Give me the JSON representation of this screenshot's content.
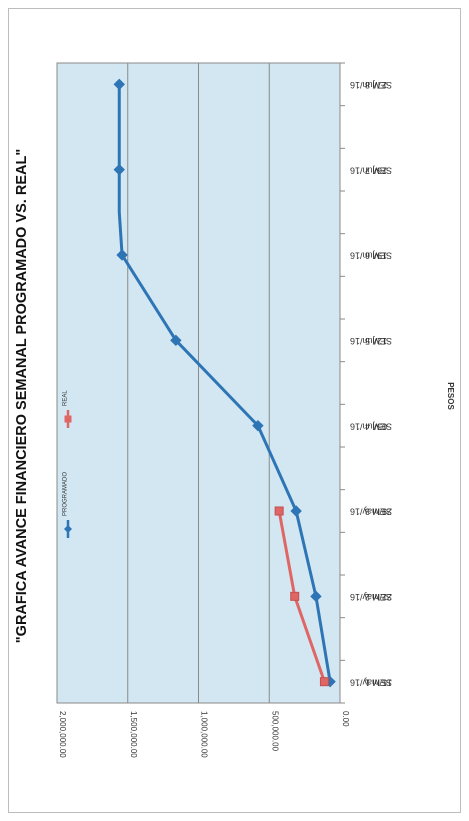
{
  "chart_data": {
    "type": "line",
    "title": "\"GRAFICA AVANCE FINANCIERO  SEMANAL PROGRAMADO VS. REAL\"",
    "xlabel": "",
    "ylabel": "PESOS",
    "ylim": [
      0,
      2000000
    ],
    "y_ticks": [
      "0.00",
      "500,000.00",
      "1,000,000.00",
      "1,500,000.00",
      "2,000,000.00"
    ],
    "y_tick_values": [
      0,
      500000,
      1000000,
      1500000,
      2000000
    ],
    "categories": [
      {
        "week": "SEM 1",
        "date": "15/may/16"
      },
      {
        "week": "",
        "date": ""
      },
      {
        "week": "SEM 2",
        "date": "22/may/16"
      },
      {
        "week": "",
        "date": ""
      },
      {
        "week": "SEM 3",
        "date": "29/may/16"
      },
      {
        "week": "",
        "date": ""
      },
      {
        "week": "SEM 4",
        "date": "05/jun/16"
      },
      {
        "week": "",
        "date": ""
      },
      {
        "week": "SEM 5",
        "date": "12/jun/16"
      },
      {
        "week": "",
        "date": ""
      },
      {
        "week": "SEM 6",
        "date": "19/jun/16"
      },
      {
        "week": "",
        "date": ""
      },
      {
        "week": "SEM 7",
        "date": "26/jun/16"
      },
      {
        "week": "",
        "date": ""
      },
      {
        "week": "SEM 8",
        "date": "27/jun/16"
      }
    ],
    "series": [
      {
        "name": "PROGRAMADO",
        "color": "#2e75b6",
        "marker": "diamond",
        "points": [
          [
            0,
            70000
          ],
          [
            1,
            170000
          ],
          [
            2,
            310000
          ],
          [
            3,
            580000
          ],
          [
            4,
            1160000
          ],
          [
            5,
            1540000
          ],
          [
            5.5,
            1560000
          ],
          [
            6,
            1560000
          ],
          [
            7,
            1560000
          ]
        ]
      },
      {
        "name": "REAL",
        "color": "#e06666",
        "marker": "square",
        "points": [
          [
            0,
            110000
          ],
          [
            1,
            320000
          ],
          [
            2,
            430000
          ]
        ]
      }
    ],
    "grid": true,
    "legend_position": "right"
  }
}
